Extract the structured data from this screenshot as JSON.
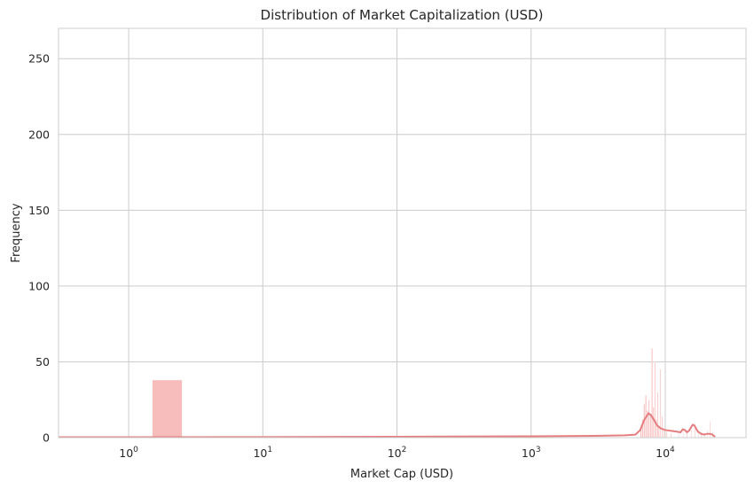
{
  "chart_data": {
    "type": "histogram",
    "title": "Distribution of Market Capitalization (USD)",
    "xlabel": "Market Cap (USD)",
    "ylabel": "Frequency",
    "xscale": "log",
    "xlim": [
      0.3,
      40000
    ],
    "ylim": [
      0,
      270
    ],
    "x_ticks": [
      {
        "value": 1,
        "base": "10",
        "exp": "0"
      },
      {
        "value": 10,
        "base": "10",
        "exp": "1"
      },
      {
        "value": 100,
        "base": "10",
        "exp": "2"
      },
      {
        "value": 1000,
        "base": "10",
        "exp": "3"
      },
      {
        "value": 10000,
        "base": "10",
        "exp": "4"
      }
    ],
    "y_ticks": [
      "0",
      "50",
      "100",
      "150",
      "200",
      "250"
    ],
    "y_tick_values": [
      0,
      50,
      100,
      150,
      200,
      250
    ],
    "grid": true,
    "bar_color": "#f4a7a7",
    "kde_color": "#e57e80",
    "bars": [
      {
        "x0": 1.5,
        "x1": 2.5,
        "count": 38
      },
      {
        "x0": 6500,
        "x1": 6650,
        "count": 6
      },
      {
        "x0": 6700,
        "x1": 6850,
        "count": 12
      },
      {
        "x0": 6900,
        "x1": 7050,
        "count": 22
      },
      {
        "x0": 7100,
        "x1": 7250,
        "count": 28
      },
      {
        "x0": 7300,
        "x1": 7450,
        "count": 18
      },
      {
        "x0": 7500,
        "x1": 7650,
        "count": 25
      },
      {
        "x0": 7700,
        "x1": 7850,
        "count": 15
      },
      {
        "x0": 7900,
        "x1": 8050,
        "count": 59
      },
      {
        "x0": 8100,
        "x1": 8250,
        "count": 20
      },
      {
        "x0": 8300,
        "x1": 8450,
        "count": 50
      },
      {
        "x0": 8500,
        "x1": 8650,
        "count": 12
      },
      {
        "x0": 8700,
        "x1": 8850,
        "count": 30
      },
      {
        "x0": 8900,
        "x1": 9050,
        "count": 8
      },
      {
        "x0": 9100,
        "x1": 9250,
        "count": 45
      },
      {
        "x0": 9400,
        "x1": 9550,
        "count": 14
      },
      {
        "x0": 9700,
        "x1": 9850,
        "count": 6
      },
      {
        "x0": 10200,
        "x1": 10350,
        "count": 4
      },
      {
        "x0": 11000,
        "x1": 11150,
        "count": 3
      },
      {
        "x0": 12500,
        "x1": 12650,
        "count": 3
      },
      {
        "x0": 13500,
        "x1": 13650,
        "count": 6
      },
      {
        "x0": 14500,
        "x1": 14650,
        "count": 5
      },
      {
        "x0": 15500,
        "x1": 15650,
        "count": 6
      },
      {
        "x0": 16500,
        "x1": 16650,
        "count": 9
      },
      {
        "x0": 17500,
        "x1": 17650,
        "count": 5
      },
      {
        "x0": 18500,
        "x1": 18650,
        "count": 4
      },
      {
        "x0": 19500,
        "x1": 19650,
        "count": 3
      },
      {
        "x0": 20500,
        "x1": 20650,
        "count": 5
      },
      {
        "x0": 21500,
        "x1": 21650,
        "count": 11
      },
      {
        "x0": 22500,
        "x1": 22650,
        "count": 4
      }
    ],
    "kde": {
      "x": [
        0.3,
        1,
        10,
        100,
        1000,
        3000,
        5000,
        6000,
        6500,
        7000,
        7500,
        7800,
        8200,
        8700,
        9300,
        10000,
        11000,
        12000,
        13000,
        13500,
        14000,
        14500,
        15000,
        15500,
        16000,
        16500,
        17000,
        17500,
        18500,
        19500,
        20500,
        21500,
        22500,
        23500
      ],
      "y": [
        0.3,
        0.3,
        0.4,
        0.6,
        0.9,
        1.2,
        1.5,
        2.0,
        5.0,
        12.0,
        16.0,
        15.0,
        12.0,
        8.0,
        6.0,
        5.0,
        4.5,
        4.0,
        3.5,
        5.5,
        5.0,
        3.5,
        4.5,
        6.5,
        8.5,
        8.0,
        6.0,
        4.0,
        2.5,
        2.0,
        2.5,
        2.5,
        2.0,
        0.5
      ]
    }
  }
}
